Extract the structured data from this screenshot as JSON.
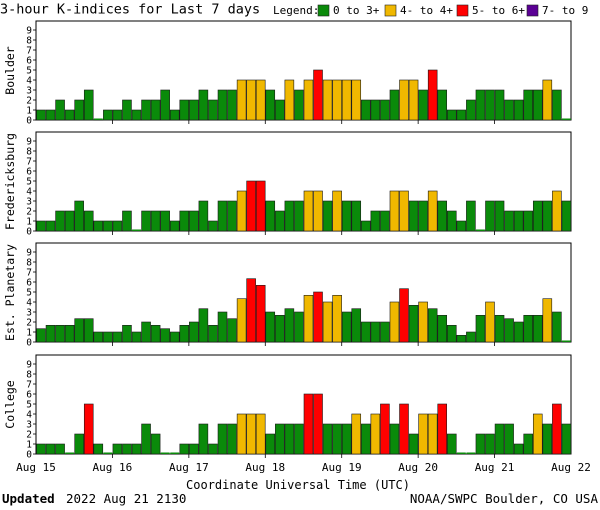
{
  "page": {
    "title": "3-hour K-indices for Last 7 days",
    "xlabel": "Coordinate Universal Time (UTC)",
    "updated_label": "Updated",
    "updated_value": "2022 Aug 21 2130",
    "credit": "NOAA/SWPC Boulder, CO USA"
  },
  "legend": {
    "label": "Legend:",
    "items": [
      {
        "label": "0 to 3+",
        "color": "#0a8a0a"
      },
      {
        "label": "4- to 4+",
        "color": "#f0b800"
      },
      {
        "label": "5- to 6+",
        "color": "#ff0000"
      },
      {
        "label": "7- to 9",
        "color": "#5a0094"
      }
    ]
  },
  "colors": {
    "quiet": "#0a8a0a",
    "active": "#f0b800",
    "storm": "#ff0000",
    "severe": "#5a0094"
  },
  "chart_data": {
    "type": "bar",
    "x_tick_labels": [
      "Aug 15",
      "Aug 16",
      "Aug 17",
      "Aug 18",
      "Aug 19",
      "Aug 20",
      "Aug 21",
      "Aug 22"
    ],
    "y_ticks": [
      0,
      1,
      2,
      3,
      4,
      5,
      6,
      7,
      8,
      9
    ],
    "ylim": [
      0,
      9
    ],
    "bins_per_day": 8,
    "panels": [
      {
        "name": "Boulder",
        "values": [
          1,
          1,
          2,
          1,
          2,
          3,
          0,
          1,
          1,
          2,
          1,
          2,
          2,
          3,
          1,
          2,
          2,
          3,
          2,
          3,
          3,
          4,
          4,
          4,
          3,
          2,
          4,
          3,
          4,
          5,
          4,
          4,
          4,
          4,
          2,
          2,
          2,
          3,
          4,
          4,
          3,
          5,
          3,
          1,
          1,
          2,
          3,
          3,
          3,
          2,
          2,
          3,
          3,
          4,
          3,
          0
        ]
      },
      {
        "name": "Fredericksburg",
        "values": [
          1,
          1,
          2,
          2,
          3,
          2,
          1,
          1,
          1,
          2,
          0,
          2,
          2,
          2,
          1,
          2,
          2,
          3,
          1,
          3,
          3,
          4,
          5,
          5,
          3,
          2,
          3,
          3,
          4,
          4,
          3,
          4,
          3,
          3,
          1,
          2,
          2,
          4,
          4,
          3,
          3,
          4,
          3,
          2,
          1,
          3,
          0,
          3,
          3,
          2,
          2,
          2,
          3,
          3,
          4,
          3
        ]
      },
      {
        "name": "Est. Planetary",
        "values": [
          1.33,
          1.67,
          1.67,
          1.67,
          2.33,
          2.33,
          1,
          1,
          1,
          1.67,
          1,
          2,
          1.67,
          1.33,
          1,
          1.67,
          2,
          3.33,
          1.67,
          3,
          2.33,
          4.33,
          6.33,
          5.67,
          3,
          2.67,
          3.33,
          3,
          4.67,
          5,
          4,
          4.67,
          3,
          3.33,
          2,
          2,
          2,
          4,
          5.33,
          3.67,
          4,
          3.33,
          2.67,
          1.67,
          0.67,
          1,
          2.67,
          4,
          2.67,
          2.33,
          2,
          2.67,
          2.67,
          4.33,
          3,
          0
        ]
      },
      {
        "name": "College",
        "values": [
          1,
          1,
          1,
          0,
          2,
          5,
          1,
          0,
          1,
          1,
          1,
          3,
          2,
          0,
          0,
          1,
          1,
          3,
          1,
          3,
          3,
          4,
          4,
          4,
          2,
          3,
          3,
          3,
          6,
          6,
          3,
          3,
          3,
          4,
          3,
          4,
          5,
          3,
          5,
          2,
          4,
          4,
          5,
          2,
          0,
          0,
          2,
          2,
          3,
          3,
          1,
          2,
          4,
          3,
          5,
          3
        ]
      }
    ]
  }
}
